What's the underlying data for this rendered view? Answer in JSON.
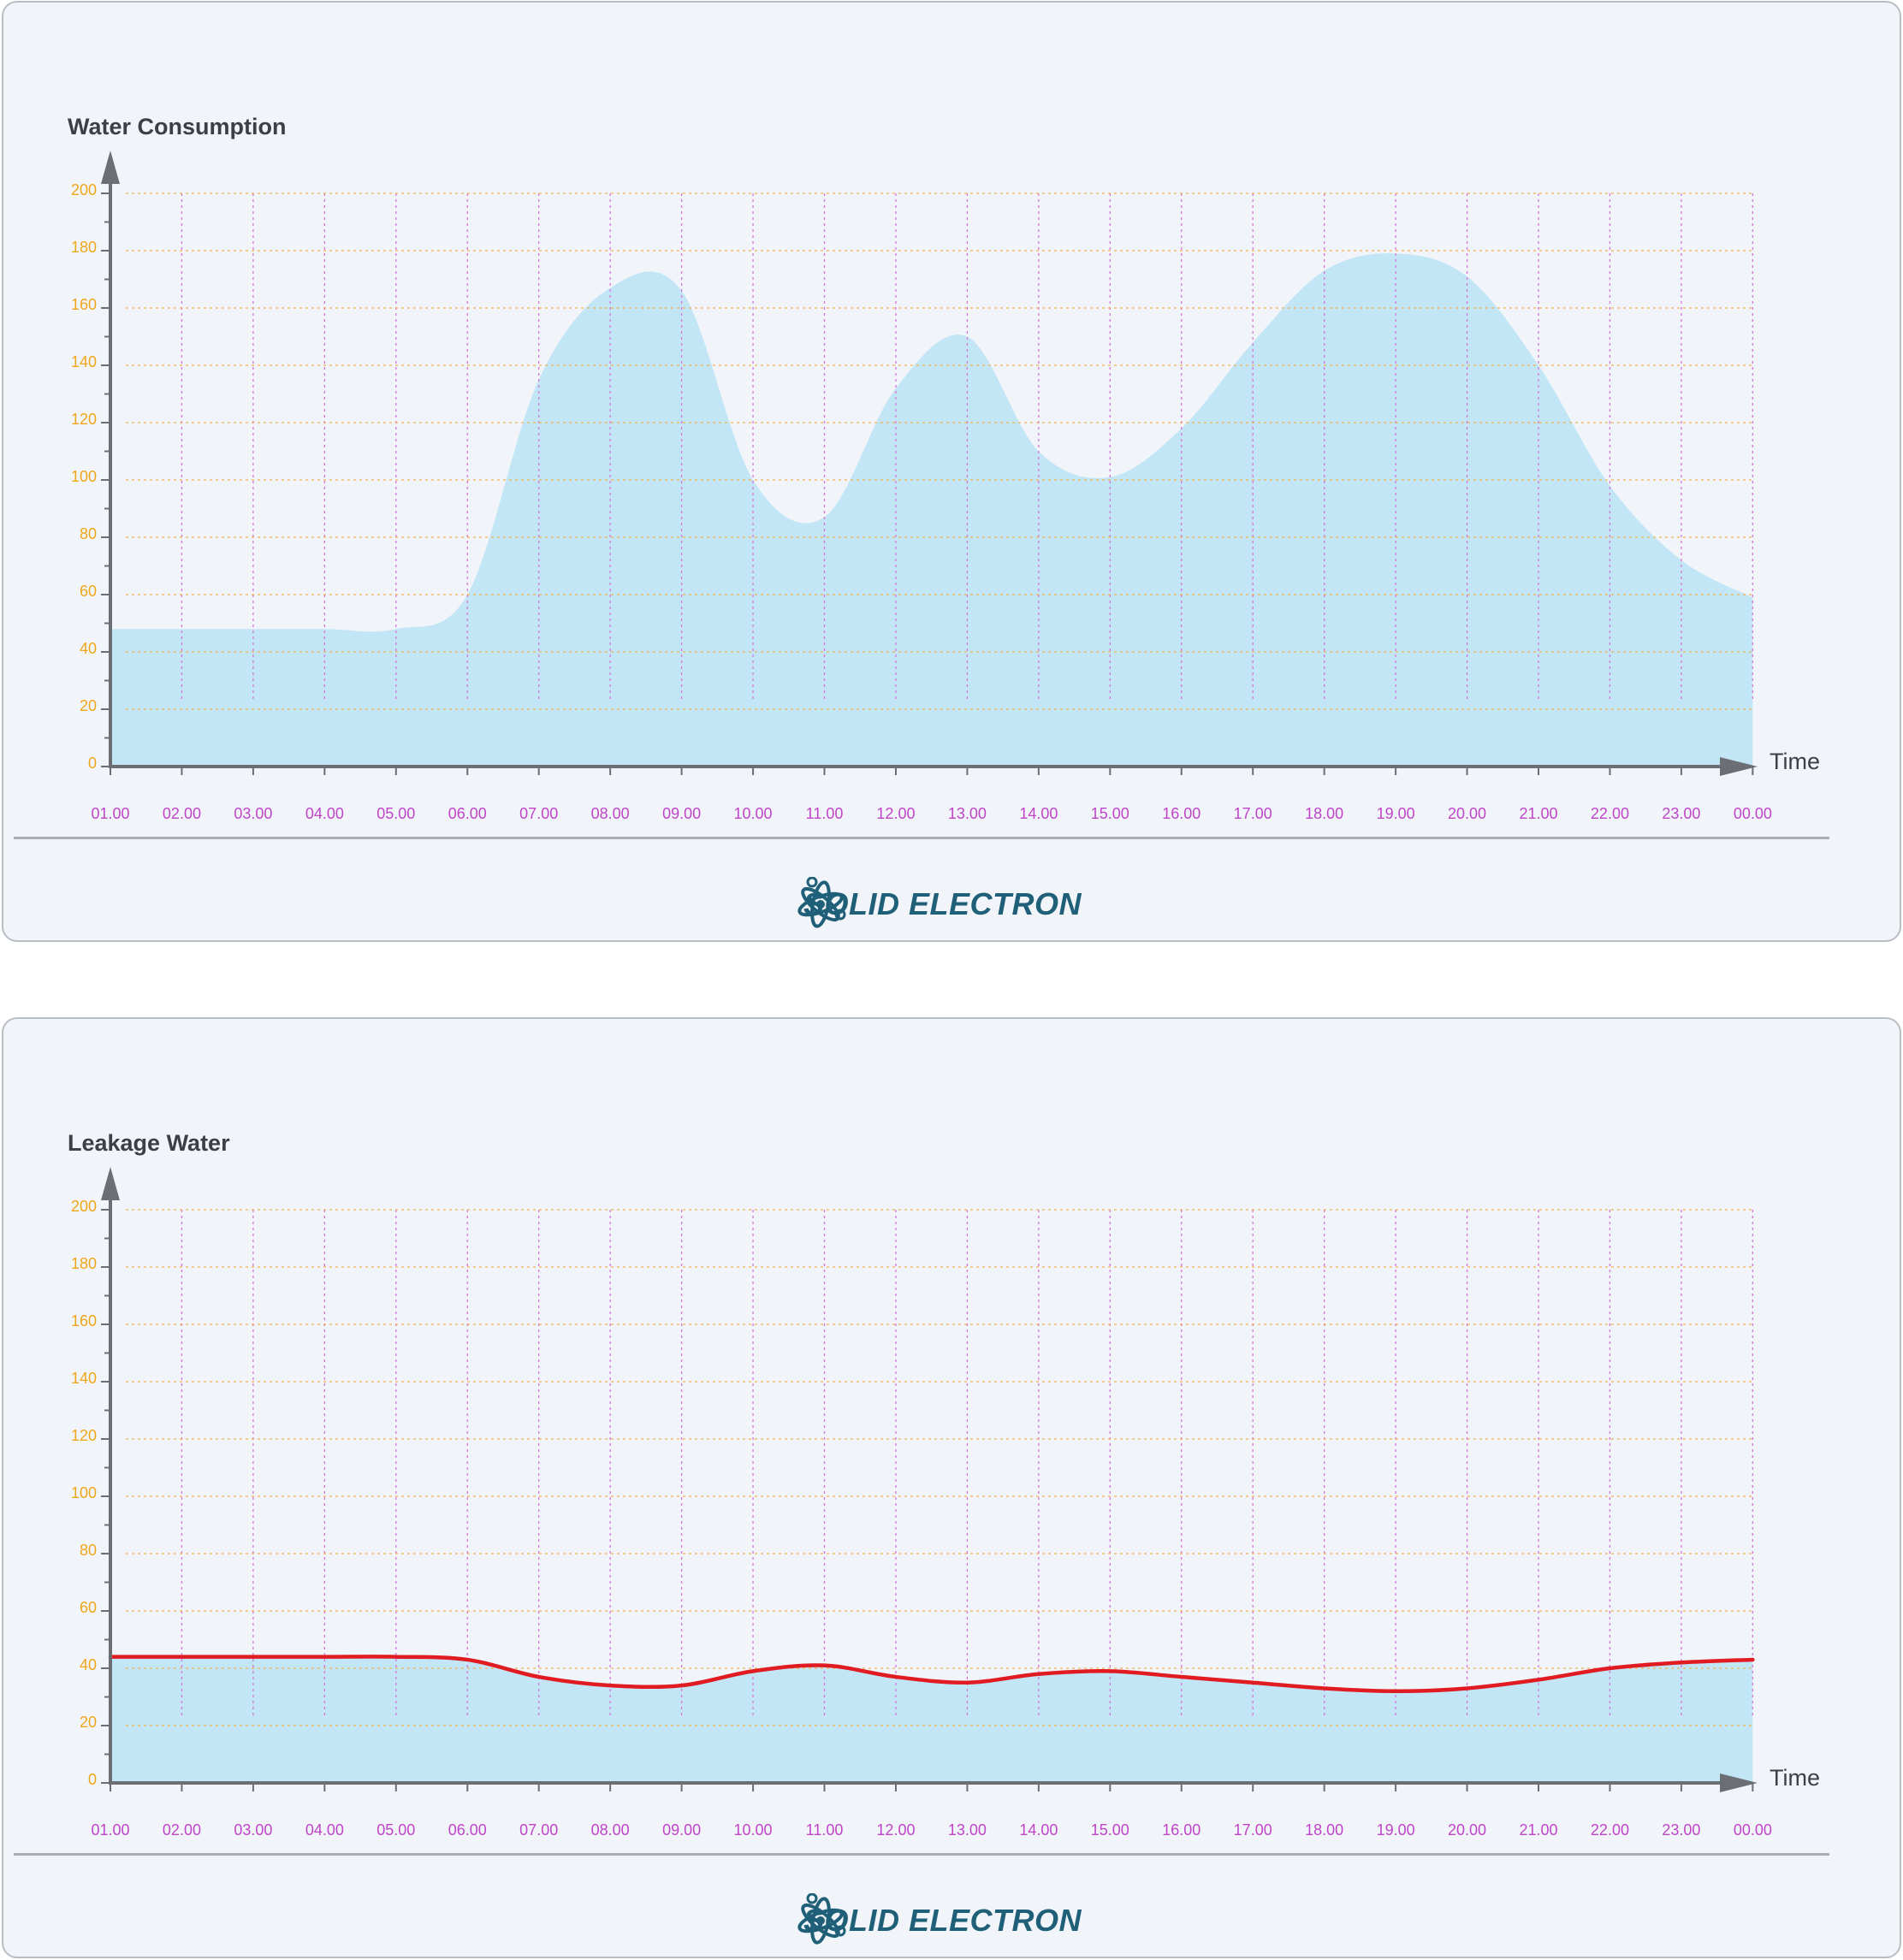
{
  "brand": {
    "name": "SOLID ELECTRON",
    "logo_icon": "atom-logo-icon",
    "color": "#1f5f78"
  },
  "colors": {
    "area_fill": "#c3e6f7",
    "line": "#e11b22",
    "grid_h": "#f3b04a",
    "grid_v": "#d774d8",
    "axis": "#6b6e72"
  },
  "chart_data": [
    {
      "type": "area",
      "title": "Water Consumption",
      "xlabel": "Time",
      "ylabel": "",
      "ylim": [
        0,
        200
      ],
      "yticks": [
        0,
        20,
        40,
        60,
        80,
        100,
        120,
        140,
        160,
        180,
        200
      ],
      "categories": [
        "01.00",
        "02.00",
        "03.00",
        "04.00",
        "05.00",
        "06.00",
        "07.00",
        "08.00",
        "09.00",
        "10.00",
        "11.00",
        "12.00",
        "13.00",
        "14.00",
        "15.00",
        "16.00",
        "17.00",
        "18.00",
        "19.00",
        "20.00",
        "21.00",
        "22.00",
        "23.00",
        "00.00"
      ],
      "series": [
        {
          "values": [
            48,
            48,
            48,
            48,
            48,
            60,
            135,
            167,
            166,
            100,
            87,
            132,
            150,
            110,
            101,
            118,
            148,
            173,
            179,
            171,
            140,
            98,
            72,
            59
          ],
          "show_line": false
        }
      ],
      "grid": true
    },
    {
      "type": "area",
      "title": "Leakage Water",
      "xlabel": "Time",
      "ylabel": "",
      "ylim": [
        0,
        200
      ],
      "yticks": [
        0,
        20,
        40,
        60,
        80,
        100,
        120,
        140,
        160,
        180,
        200
      ],
      "categories": [
        "01.00",
        "02.00",
        "03.00",
        "04.00",
        "05.00",
        "06.00",
        "07.00",
        "08.00",
        "09.00",
        "10.00",
        "11.00",
        "12.00",
        "13.00",
        "14.00",
        "15.00",
        "16.00",
        "17.00",
        "18.00",
        "19.00",
        "20.00",
        "21.00",
        "22.00",
        "23.00",
        "00.00"
      ],
      "series": [
        {
          "values": [
            44,
            44,
            44,
            44,
            44,
            43,
            37,
            34,
            34,
            39,
            41,
            37,
            35,
            38,
            39,
            37,
            35,
            33,
            32,
            33,
            36,
            40,
            42,
            43
          ],
          "show_line": true
        }
      ],
      "grid": true
    }
  ]
}
